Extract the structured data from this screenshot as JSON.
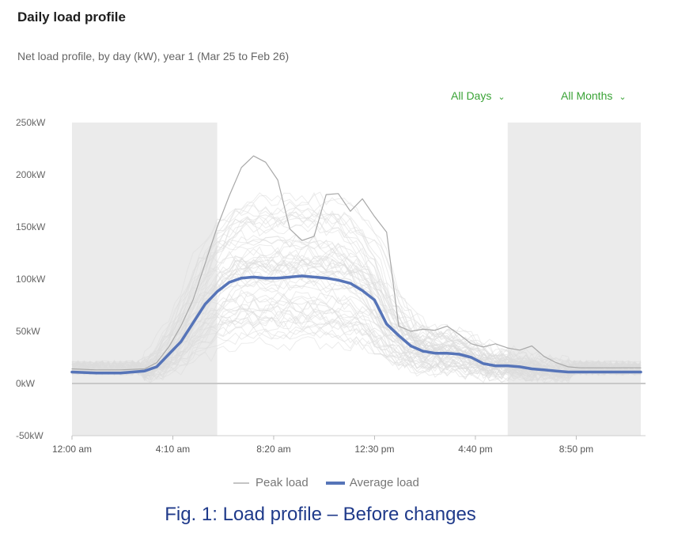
{
  "header": {
    "title": "Daily load profile",
    "subtitle": "Net load profile, by day (kW), year 1 (Mar 25 to Feb 26)"
  },
  "filters": {
    "days": {
      "label": "All Days",
      "icon": "chevron-down-icon"
    },
    "months": {
      "label": "All Months",
      "icon": "chevron-down-icon"
    }
  },
  "legend": {
    "peak": "Peak load",
    "average": "Average load"
  },
  "caption": "Fig. 1: Load profile – Before changes",
  "colors": {
    "average": "#5674b8",
    "peak": "#a8a8a8",
    "daily": "#dcdcdc",
    "offpeak_band": "#ebebeb",
    "filter_text": "#3aa336",
    "caption": "#1f3a8a"
  },
  "chart_data": {
    "type": "line",
    "x_unit": "hour of day",
    "xlim": [
      0,
      23.5
    ],
    "ylim": [
      -50,
      250
    ],
    "y_ticks": [
      250,
      200,
      150,
      100,
      50,
      0,
      -50
    ],
    "y_tick_labels": [
      "250kW",
      "200kW",
      "150kW",
      "100kW",
      "50kW",
      "0kW",
      "-50kW"
    ],
    "x_ticks": [
      0,
      4.1667,
      8.3333,
      12.5,
      16.6667,
      20.8333
    ],
    "x_tick_labels": [
      "12:00 am",
      "4:10 am",
      "8:20 am",
      "12:30 pm",
      "4:40 pm",
      "8:50 pm"
    ],
    "shaded_ranges": [
      [
        0,
        6
      ],
      [
        18,
        23.5
      ]
    ],
    "series": [
      {
        "name": "Average load",
        "x": [
          0,
          1,
          2,
          2.5,
          3,
          3.5,
          4,
          4.5,
          5,
          5.5,
          6,
          6.5,
          7,
          7.5,
          8,
          8.5,
          9,
          9.5,
          10,
          10.5,
          11,
          11.5,
          12,
          12.5,
          13,
          13.5,
          14,
          14.5,
          15,
          15.5,
          16,
          16.5,
          17,
          17.5,
          18,
          18.5,
          19,
          19.5,
          20,
          20.5,
          21,
          22,
          23.5
        ],
        "values": [
          11,
          10,
          10,
          11,
          12,
          16,
          28,
          40,
          58,
          76,
          88,
          97,
          101,
          102,
          101,
          101,
          102,
          103,
          102,
          101,
          99,
          96,
          89,
          80,
          57,
          46,
          36,
          31,
          29,
          29,
          28,
          25,
          19,
          17,
          17,
          16,
          14,
          13,
          12,
          11,
          11,
          11,
          11
        ]
      },
      {
        "name": "Peak load",
        "x": [
          0,
          1,
          2,
          3,
          3.5,
          4,
          4.5,
          5,
          5.5,
          6,
          6.5,
          7,
          7.5,
          8,
          8.5,
          9,
          9.5,
          10,
          10.5,
          11,
          11.5,
          12,
          12.5,
          13,
          13.5,
          14,
          14.5,
          15,
          15.5,
          16,
          16.5,
          17,
          17.5,
          18,
          18.5,
          19,
          19.5,
          20,
          20.5,
          21,
          22,
          23.5
        ],
        "values": [
          14,
          13,
          13,
          14,
          20,
          35,
          55,
          80,
          115,
          150,
          180,
          207,
          218,
          212,
          195,
          148,
          137,
          141,
          181,
          182,
          165,
          177,
          160,
          145,
          55,
          50,
          52,
          51,
          55,
          47,
          38,
          35,
          38,
          34,
          32,
          36,
          26,
          20,
          16,
          15,
          15,
          15
        ]
      }
    ]
  }
}
